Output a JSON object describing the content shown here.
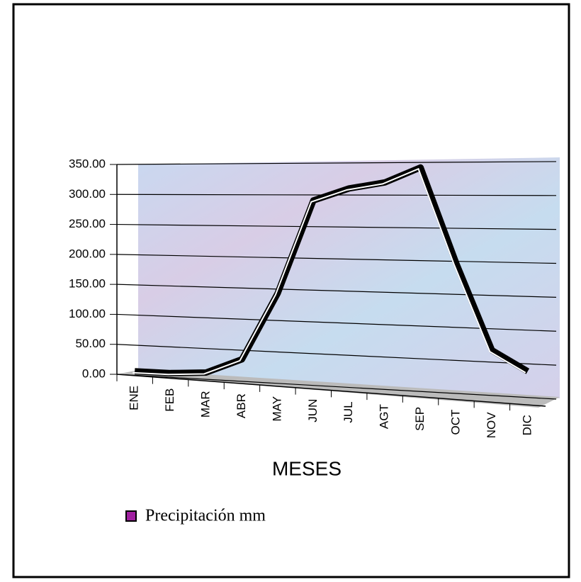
{
  "chart_data": {
    "type": "line",
    "xlabel": "MESES",
    "categories": [
      "ENE",
      "FEB",
      "MAR",
      "ABR",
      "MAY",
      "JUN",
      "JUL",
      "AGT",
      "SEP",
      "OCT",
      "NOV",
      "DIC"
    ],
    "series": [
      {
        "name": "Precipitación mm",
        "color": "#000000",
        "values": [
          5,
          2,
          3,
          25,
          135,
          290,
          310,
          320,
          345,
          185,
          40,
          5
        ]
      }
    ],
    "ylim": [
      0,
      350
    ],
    "yticks": [
      {
        "value": 0,
        "label": "0.00"
      },
      {
        "value": 50,
        "label": "50.00"
      },
      {
        "value": 100,
        "label": "100.00"
      },
      {
        "value": 150,
        "label": "150.00"
      },
      {
        "value": 200,
        "label": "200.00"
      },
      {
        "value": 250,
        "label": "250.00"
      },
      {
        "value": 300,
        "label": "300.00"
      },
      {
        "value": 350,
        "label": "350.00"
      }
    ],
    "grid": true,
    "legend": "bottom-left",
    "legend_color": "#a020a0"
  }
}
